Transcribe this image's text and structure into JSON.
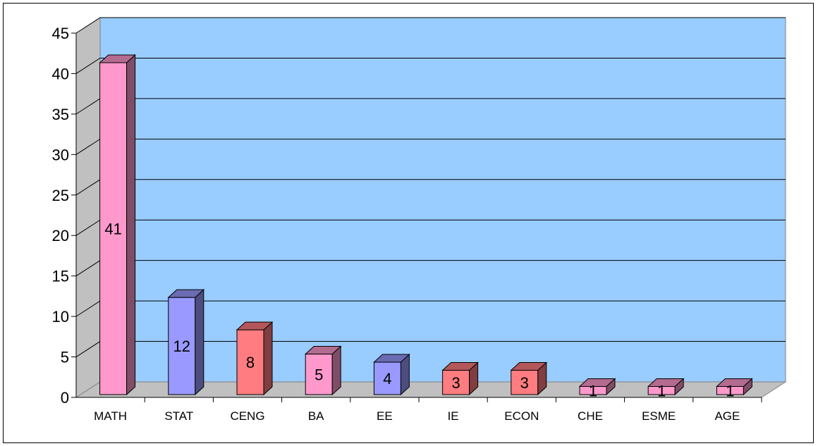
{
  "chart_data": {
    "type": "bar",
    "style": "3d-column",
    "categories": [
      "MATH",
      "STAT",
      "CENG",
      "BA",
      "EE",
      "IE",
      "ECON",
      "CHE",
      "ESME",
      "AGE"
    ],
    "values": [
      41,
      12,
      8,
      5,
      4,
      3,
      3,
      1,
      1,
      1
    ],
    "data_labels": [
      "41",
      "12",
      "8",
      "5",
      "4",
      "3",
      "3",
      "1",
      "1",
      "1"
    ],
    "bar_colors": [
      "#ff99cc",
      "#9999ff",
      "#ff7c80",
      "#ff99cc",
      "#9999ff",
      "#ff7c80",
      "#ff7c80",
      "#ff99cc",
      "#ff99cc",
      "#ff99cc"
    ],
    "plot_background": "#99ccff",
    "title": "",
    "xlabel": "",
    "ylabel": "",
    "ylim": [
      0,
      45
    ],
    "yticks": [
      0,
      5,
      10,
      15,
      20,
      25,
      30,
      35,
      40,
      45
    ],
    "grid": true,
    "legend": "none"
  }
}
